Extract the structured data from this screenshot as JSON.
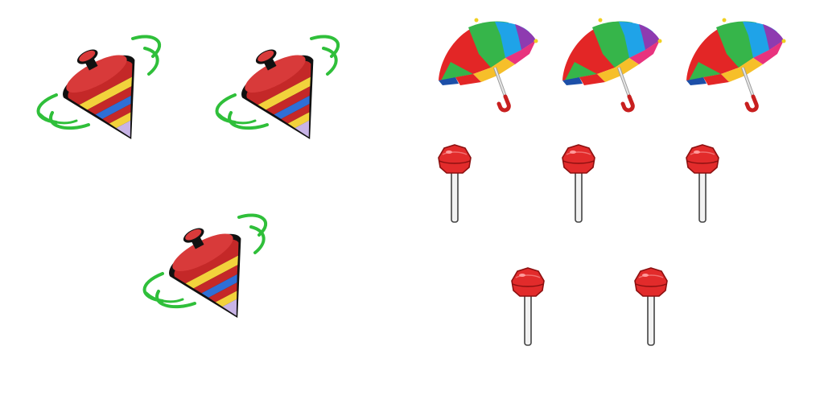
{
  "scene": {
    "background": "#ffffff",
    "groups": [
      {
        "name": "spinning-tops",
        "icon": "spinning-top-icon",
        "count": 3
      },
      {
        "name": "umbrellas",
        "icon": "umbrella-icon",
        "count": 3
      },
      {
        "name": "lollipops",
        "icon": "lollipop-icon",
        "count": 5
      }
    ]
  },
  "colors": {
    "top_body": "#c42828",
    "top_band_yellow": "#f2d23c",
    "top_band_blue": "#2f6fd6",
    "top_band_lilac": "#c8b4e6",
    "top_swirl": "#2fbf3a",
    "umbrella_red": "#e32626",
    "umbrella_green": "#36b54a",
    "umbrella_blue": "#1fa3e8",
    "umbrella_purple": "#8e3bb0",
    "umbrella_pink": "#e8337e",
    "umbrella_yellow": "#f6bf2a",
    "umbrella_navy": "#1c4fa8",
    "lollipop_red": "#e22b2b",
    "stick": "#f2f2f2"
  }
}
